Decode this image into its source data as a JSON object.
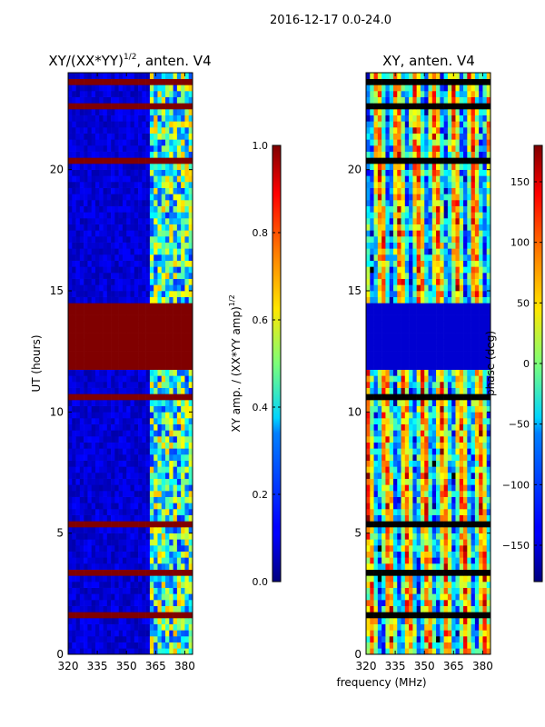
{
  "suptitle": "2016-12-17 0.0-24.0",
  "xlabel": "frequency (MHz)",
  "chart_data": [
    {
      "type": "heatmap",
      "title_main": "XY/(XX*YY)",
      "title_sup": "1/2",
      "title_tail": ", anten. V4",
      "ylabel": "UT (hours)",
      "x_range": [
        320,
        384
      ],
      "y_range": [
        0,
        24
      ],
      "x_ticks": [
        320,
        335,
        350,
        365,
        380
      ],
      "y_ticks": [
        0,
        5,
        10,
        15,
        20
      ],
      "colorbar": {
        "label_main": "XY amp. / (XX*YY amp)",
        "label_sup": "1/2",
        "range": [
          0,
          1
        ],
        "ticks": [
          "0.0",
          "0.2",
          "0.4",
          "0.6",
          "0.8",
          "1.0"
        ],
        "tick_values": [
          0,
          0.2,
          0.4,
          0.6,
          0.8,
          1.0
        ]
      },
      "saturated_block_ut": [
        11.8,
        14.5
      ],
      "note": "Low amplitude (dark blue) below 360 MHz; patchy high values 360-384 MHz; horizontal saturated bands at flagged times."
    },
    {
      "type": "heatmap",
      "title": "XY, anten. V4",
      "x_range": [
        320,
        384
      ],
      "y_range": [
        0,
        24
      ],
      "x_ticks": [
        320,
        335,
        350,
        365,
        380
      ],
      "y_ticks": [
        0,
        5,
        10,
        15,
        20
      ],
      "colorbar": {
        "label": "phase (deg)",
        "range": [
          -180,
          180
        ],
        "ticks": [
          "150",
          "100",
          "50",
          "0",
          "−50",
          "−100",
          "−150"
        ],
        "tick_values": [
          150,
          100,
          50,
          0,
          -50,
          -100,
          -150
        ]
      },
      "flag_block_ut": [
        11.8,
        14.5
      ],
      "note": "Vertical phase striping across frequency with black flagged rows."
    }
  ]
}
